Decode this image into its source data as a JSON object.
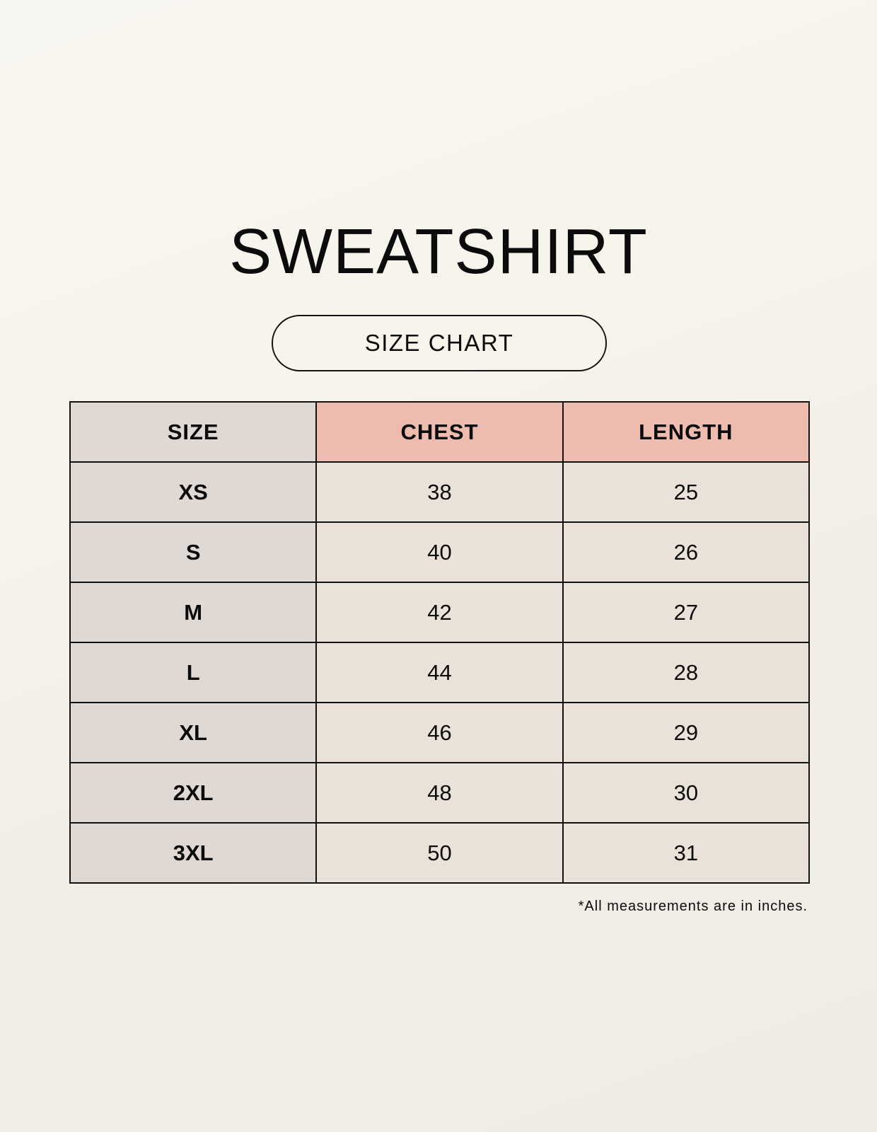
{
  "title": "SWEATSHIRT",
  "subtitle": "SIZE CHART",
  "table": {
    "headers": [
      "SIZE",
      "CHEST",
      "LENGTH"
    ],
    "rows": [
      {
        "size": "XS",
        "chest": "38",
        "length": "25"
      },
      {
        "size": "S",
        "chest": "40",
        "length": "26"
      },
      {
        "size": "M",
        "chest": "42",
        "length": "27"
      },
      {
        "size": "L",
        "chest": "44",
        "length": "28"
      },
      {
        "size": "XL",
        "chest": "46",
        "length": "29"
      },
      {
        "size": "2XL",
        "chest": "48",
        "length": "30"
      },
      {
        "size": "3XL",
        "chest": "50",
        "length": "31"
      }
    ]
  },
  "footnote": "*All measurements are in inches.",
  "colors": {
    "size_column": "#e0d8d2",
    "measure_header": "#eebcae",
    "value_cells": "#eae2d8"
  }
}
